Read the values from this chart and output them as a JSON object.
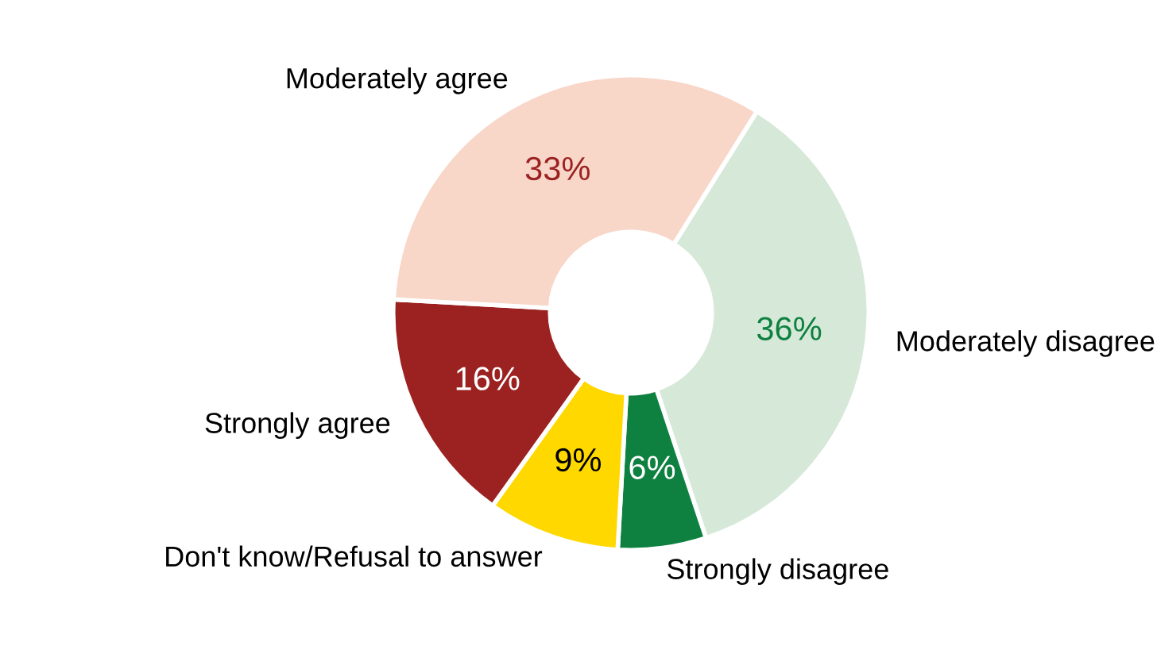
{
  "chart_data": {
    "type": "donut",
    "categories": [
      "Moderately disagree",
      "Strongly disagree",
      "Don't know/Refusal to answer",
      "Strongly agree",
      "Moderately agree"
    ],
    "values": [
      36,
      6,
      9,
      16,
      33
    ],
    "colors": [
      "#d6e8d8",
      "#0e8040",
      "#ffd800",
      "#9b2221",
      "#f8d6c8"
    ],
    "value_labels": [
      "36%",
      "6%",
      "9%",
      "16%",
      "33%"
    ],
    "legend": false
  }
}
